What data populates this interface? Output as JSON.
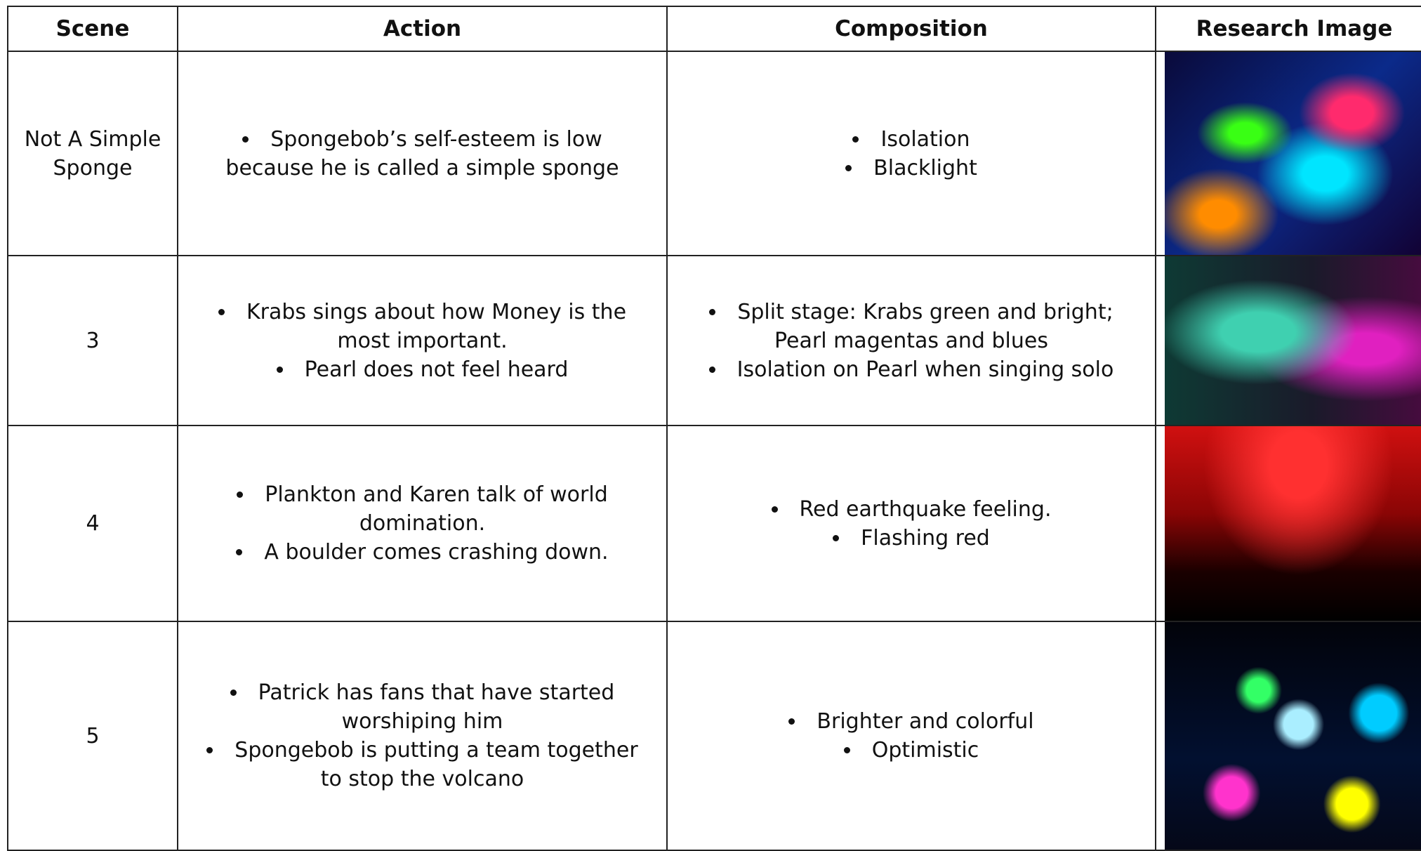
{
  "table": {
    "header": [
      "Scene",
      "Action",
      "Composition",
      "Research Image"
    ],
    "rows": [
      {
        "scene": "Not A Simple Sponge",
        "action": [
          "Spongebob’s self-esteem is low because he is called a simple sponge"
        ],
        "composition": [
          "Isolation",
          "Blacklight"
        ]
      },
      {
        "scene": "3",
        "action": [
          "Krabs sings about how Money is the most important.",
          "Pearl does not feel heard"
        ],
        "composition": [
          "Split stage: Krabs green and bright; Pearl magentas and blues",
          "Isolation on Pearl when singing solo"
        ]
      },
      {
        "scene": "4",
        "action": [
          "Plankton and Karen talk of world domination.",
          "A boulder comes crashing down."
        ],
        "composition": [
          "Red earthquake feeling.",
          "Flashing red"
        ]
      },
      {
        "scene": "5",
        "action": [
          "Patrick has fans that have started worshiping him",
          "Spongebob is putting a team together to stop the volcano"
        ],
        "composition": [
          "Brighter and colorful",
          "Optimistic"
        ]
      }
    ]
  }
}
